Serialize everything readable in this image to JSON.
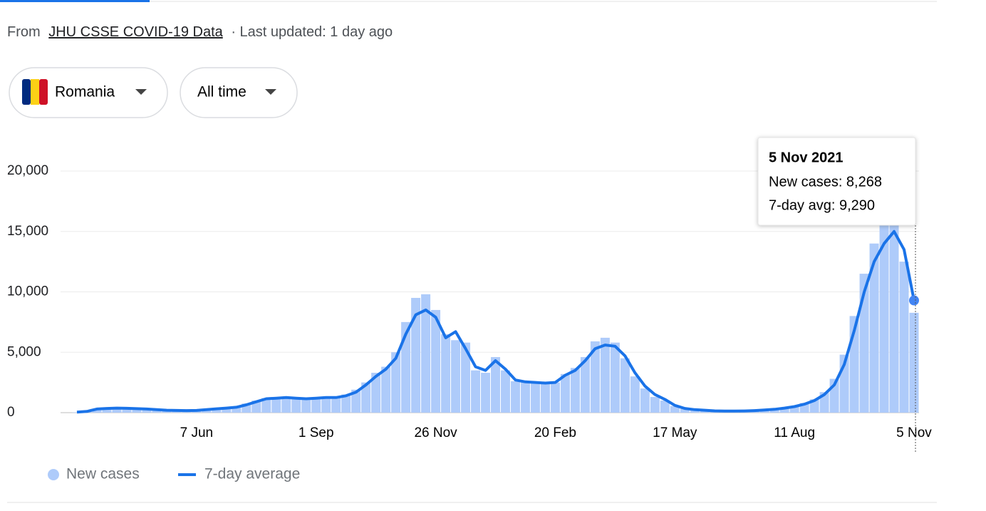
{
  "header": {
    "from": "From",
    "source": "JHU CSSE COVID-19 Data",
    "updated": "· Last updated: 1 day ago"
  },
  "filters": {
    "region": "Romania",
    "period": "All time"
  },
  "chart_data": {
    "type": "bar",
    "categories": [
      null,
      null,
      null,
      null,
      null,
      null,
      null,
      null,
      null,
      null,
      null,
      null,
      "7 Jun",
      null,
      null,
      null,
      null,
      null,
      null,
      null,
      null,
      null,
      null,
      null,
      "1 Sep",
      null,
      null,
      null,
      null,
      null,
      null,
      null,
      null,
      null,
      null,
      null,
      "26 Nov",
      null,
      null,
      null,
      null,
      null,
      null,
      null,
      null,
      null,
      null,
      null,
      "20 Feb",
      null,
      null,
      null,
      null,
      null,
      null,
      null,
      null,
      null,
      null,
      null,
      "17 May",
      null,
      null,
      null,
      null,
      null,
      null,
      null,
      null,
      null,
      null,
      null,
      "11 Aug",
      null,
      null,
      null,
      null,
      null,
      null,
      null,
      null,
      null,
      null,
      null,
      "5 Nov"
    ],
    "series": [
      {
        "name": "New cases",
        "type": "bar",
        "color": "#aecbfa",
        "values": [
          30,
          150,
          250,
          330,
          360,
          380,
          340,
          320,
          280,
          230,
          190,
          170,
          160,
          220,
          300,
          380,
          500,
          750,
          1000,
          1200,
          1300,
          1250,
          1150,
          1100,
          1250,
          1300,
          1350,
          1500,
          1900,
          2500,
          3300,
          3800,
          5000,
          7500,
          9500,
          9800,
          8500,
          6500,
          6000,
          5800,
          3500,
          3300,
          4600,
          3500,
          2600,
          2500,
          2500,
          2400,
          2500,
          3200,
          3700,
          4600,
          5900,
          6200,
          5800,
          4500,
          3000,
          2000,
          1300,
          1000,
          550,
          320,
          230,
          190,
          140,
          120,
          130,
          150,
          180,
          240,
          300,
          420,
          550,
          800,
          1100,
          1700,
          2800,
          4800,
          8000,
          11500,
          14000,
          16000,
          16500,
          12500,
          8268
        ]
      },
      {
        "name": "7-day average",
        "type": "line",
        "color": "#1a73e8",
        "values": [
          50,
          100,
          300,
          350,
          380,
          360,
          330,
          300,
          250,
          200,
          180,
          170,
          180,
          250,
          320,
          380,
          450,
          650,
          900,
          1150,
          1200,
          1250,
          1200,
          1150,
          1200,
          1250,
          1250,
          1400,
          1700,
          2300,
          3000,
          3600,
          4500,
          6500,
          8100,
          8500,
          7900,
          6200,
          6700,
          5300,
          3800,
          3500,
          4300,
          3600,
          2700,
          2550,
          2500,
          2450,
          2500,
          3100,
          3500,
          4300,
          5300,
          5600,
          5500,
          4700,
          3300,
          2200,
          1500,
          1100,
          600,
          350,
          250,
          200,
          150,
          130,
          130,
          140,
          170,
          220,
          280,
          380,
          500,
          700,
          1000,
          1500,
          2300,
          4000,
          6800,
          10000,
          12500,
          14000,
          15000,
          13500,
          9290
        ]
      }
    ],
    "ylim": [
      0,
      20000
    ],
    "yticks": [
      0,
      {
        "value": 5000,
        "label": "5,000"
      },
      {
        "value": 10000,
        "label": "10,000"
      },
      {
        "value": 15000,
        "label": "15,000"
      },
      {
        "value": 20000,
        "label": "20,000"
      }
    ],
    "grid": true,
    "tooltip": {
      "date": "5 Nov 2021",
      "lines": [
        "New cases: 8,268",
        "7-day avg: 9,290"
      ]
    }
  }
}
